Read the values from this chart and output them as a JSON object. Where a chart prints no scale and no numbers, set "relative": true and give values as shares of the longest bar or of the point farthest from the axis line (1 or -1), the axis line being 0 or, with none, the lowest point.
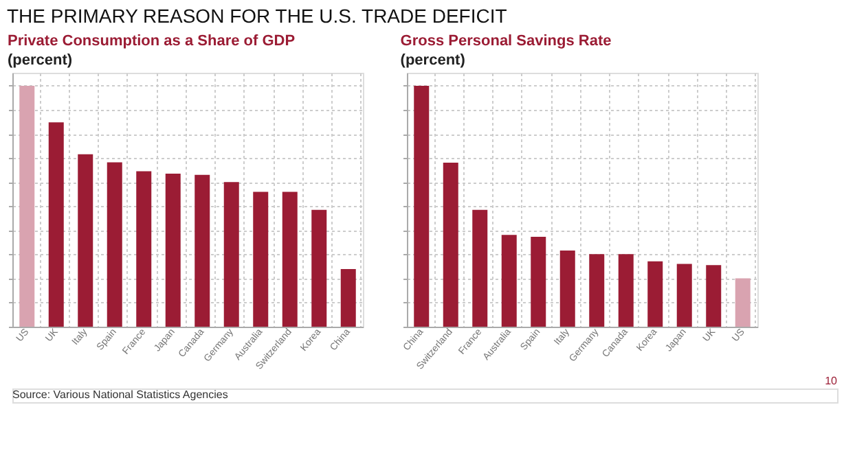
{
  "chart_data": [
    {
      "type": "bar",
      "title": "Private Consumption as a Share of GDP",
      "subtitle": "(percent)",
      "relative": true,
      "grid": true,
      "categories": [
        "US",
        "UK",
        "Italy",
        "Spain",
        "France",
        "Japan",
        "Canada",
        "Germany",
        "Australia",
        "Switzerland",
        "Korea",
        "China"
      ],
      "values": [
        1,
        0.848,
        0.716,
        0.682,
        0.645,
        0.635,
        0.63,
        0.6,
        0.56,
        0.56,
        0.485,
        0.239
      ],
      "colors": [
        "#d9a3b0",
        "#9b1c34",
        "#9b1c34",
        "#9b1c34",
        "#9b1c34",
        "#9b1c34",
        "#9b1c34",
        "#9b1c34",
        "#9b1c34",
        "#9b1c34",
        "#9b1c34",
        "#9b1c34"
      ],
      "annotations": [
        "THE PRIMARY REASON FOR THE U.S. TRADE DEFICIT"
      ]
    },
    {
      "type": "bar",
      "title": "Gross Personal Savings Rate",
      "subtitle": "(percent)",
      "relative": true,
      "grid": true,
      "categories": [
        "China",
        "Switzerland",
        "France",
        "Australia",
        "Spain",
        "Italy",
        "Germany",
        "Canada",
        "Korea",
        "Japan",
        "UK",
        "US"
      ],
      "values": [
        1,
        0.681,
        0.485,
        0.381,
        0.373,
        0.316,
        0.301,
        0.301,
        0.271,
        0.261,
        0.256,
        0.201
      ],
      "colors": [
        "#9b1c34",
        "#9b1c34",
        "#9b1c34",
        "#9b1c34",
        "#9b1c34",
        "#9b1c34",
        "#9b1c34",
        "#9b1c34",
        "#9b1c34",
        "#9b1c34",
        "#9b1c34",
        "#d9a3b0"
      ],
      "annotations": [
        "Source: Various National Statistics Agencies",
        "10"
      ]
    }
  ]
}
